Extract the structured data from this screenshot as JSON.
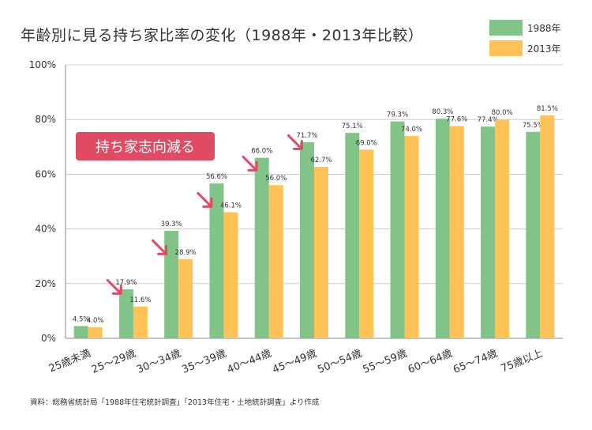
{
  "chart_data": {
    "type": "bar",
    "title": "年齢別に見る持ち家比率の変化（1988年・2013年比較）",
    "categories": [
      "25歳未満",
      "25〜29歳",
      "30〜34歳",
      "35〜39歳",
      "40〜44歳",
      "45〜49歳",
      "50〜54歳",
      "55〜59歳",
      "60〜64歳",
      "65〜74歳",
      "75歳以上"
    ],
    "series": [
      {
        "name": "1988年",
        "color": "#82c388",
        "values": [
          4.5,
          17.9,
          39.3,
          56.6,
          66.0,
          71.7,
          75.1,
          79.3,
          80.3,
          77.4,
          75.5
        ],
        "labels": [
          "4.5%",
          "17.9%",
          "39.3%",
          "56.6%",
          "66.0%",
          "71.7%",
          "75.1%",
          "79.3%",
          "80.3%",
          "77.4%",
          "75.5%"
        ]
      },
      {
        "name": "2013年",
        "color": "#ffc257",
        "values": [
          4.0,
          11.6,
          28.9,
          46.1,
          56.0,
          62.7,
          69.0,
          74.0,
          77.6,
          80.0,
          81.5
        ],
        "labels": [
          "4.0%",
          "11.6%",
          "28.9%",
          "46.1%",
          "56.0%",
          "62.7%",
          "69.0%",
          "74.0%",
          "77.6%",
          "80.0%",
          "81.5%"
        ]
      }
    ],
    "ylim": [
      0,
      100
    ],
    "yticks": [
      "0%",
      "20%",
      "40%",
      "60%",
      "80%",
      "100%"
    ],
    "xlabel": "",
    "ylabel": "",
    "grid": true,
    "legend": "top-right",
    "annotation": "持ち家志向減る",
    "annotation_color": "#e04a63",
    "source": "資料：総務省統計局「1988年住宅統計調査」「2013年住宅・土地統計調査」より作成"
  }
}
